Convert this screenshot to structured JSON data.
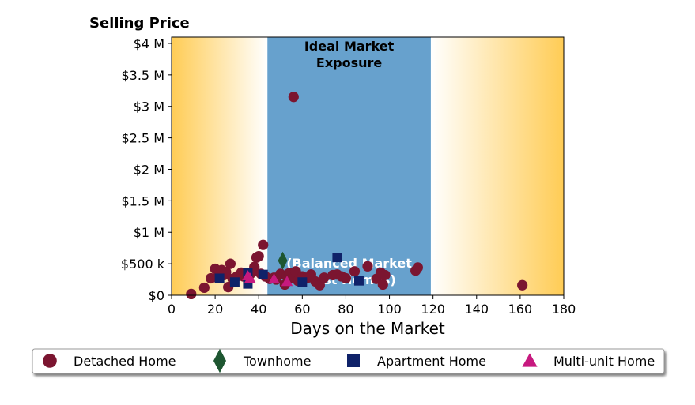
{
  "chart_data": {
    "type": "scatter",
    "title": "Selling Price",
    "xlabel": "Days on the Market",
    "ylabel": "",
    "xlim": [
      0,
      180
    ],
    "ylim": [
      0,
      4100000
    ],
    "x_ticks": [
      0,
      20,
      40,
      60,
      80,
      100,
      120,
      140,
      160,
      180
    ],
    "x_tick_labels": [
      "0",
      "20",
      "40",
      "60",
      "80",
      "100",
      "120",
      "140",
      "160",
      "180"
    ],
    "y_ticks": [
      0,
      500000,
      1000000,
      1500000,
      2000000,
      2500000,
      3000000,
      3500000,
      4000000
    ],
    "y_tick_labels": [
      "$0",
      "$500 k",
      "$1 M",
      "$1.5 M",
      "$2 M",
      "$2.5 M",
      "$3 M",
      "$3.5 M",
      "$4 M"
    ],
    "grid": false,
    "legend_position": "bottom",
    "bands": [
      {
        "from": 0,
        "to": 44,
        "style": "gradient-left",
        "color": "#FFCC55"
      },
      {
        "from": 44,
        "to": 119,
        "style": "solid",
        "color": "#67A1CD",
        "label_top": [
          "Ideal Market",
          "Exposure"
        ],
        "label_bottom": [
          "(Balanced Market",
          "Most Homes)"
        ]
      },
      {
        "from": 119,
        "to": 180,
        "style": "gradient-right",
        "color": "#FFCC55"
      }
    ],
    "series": [
      {
        "name": "Detached Home",
        "color": "#7B1530",
        "marker": "circle",
        "points": [
          [
            9,
            20000
          ],
          [
            15,
            120000
          ],
          [
            18,
            270000
          ],
          [
            20,
            420000
          ],
          [
            21,
            280000
          ],
          [
            22,
            350000
          ],
          [
            23,
            400000
          ],
          [
            24,
            320000
          ],
          [
            25,
            370000
          ],
          [
            26,
            130000
          ],
          [
            27,
            500000
          ],
          [
            28,
            260000
          ],
          [
            30,
            300000
          ],
          [
            32,
            360000
          ],
          [
            33,
            300000
          ],
          [
            35,
            280000
          ],
          [
            36,
            330000
          ],
          [
            37,
            370000
          ],
          [
            38,
            450000
          ],
          [
            39,
            600000
          ],
          [
            40,
            620000
          ],
          [
            41,
            340000
          ],
          [
            42,
            800000
          ],
          [
            43,
            300000
          ],
          [
            45,
            260000
          ],
          [
            47,
            280000
          ],
          [
            48,
            250000
          ],
          [
            50,
            340000
          ],
          [
            52,
            170000
          ],
          [
            53,
            300000
          ],
          [
            54,
            350000
          ],
          [
            55,
            270000
          ],
          [
            56,
            3150000
          ],
          [
            57,
            380000
          ],
          [
            58,
            230000
          ],
          [
            60,
            300000
          ],
          [
            62,
            270000
          ],
          [
            64,
            330000
          ],
          [
            66,
            220000
          ],
          [
            68,
            160000
          ],
          [
            70,
            280000
          ],
          [
            74,
            320000
          ],
          [
            76,
            330000
          ],
          [
            78,
            300000
          ],
          [
            80,
            270000
          ],
          [
            84,
            380000
          ],
          [
            90,
            460000
          ],
          [
            94,
            260000
          ],
          [
            96,
            360000
          ],
          [
            97,
            170000
          ],
          [
            98,
            320000
          ],
          [
            112,
            390000
          ],
          [
            113,
            440000
          ],
          [
            161,
            160000
          ]
        ]
      },
      {
        "name": "Townhome",
        "color": "#1E5631",
        "marker": "diamond",
        "points": [
          [
            51,
            550000
          ]
        ]
      },
      {
        "name": "Apartment Home",
        "color": "#0F2269",
        "marker": "square",
        "points": [
          [
            22,
            270000
          ],
          [
            29,
            210000
          ],
          [
            35,
            360000
          ],
          [
            35,
            180000
          ],
          [
            42,
            330000
          ],
          [
            60,
            210000
          ],
          [
            76,
            600000
          ],
          [
            86,
            230000
          ]
        ]
      },
      {
        "name": "Multi-unit Home",
        "color": "#C7197F",
        "marker": "triangle",
        "points": [
          [
            35,
            310000
          ],
          [
            36,
            270000
          ],
          [
            47,
            260000
          ],
          [
            53,
            220000
          ]
        ]
      }
    ]
  }
}
